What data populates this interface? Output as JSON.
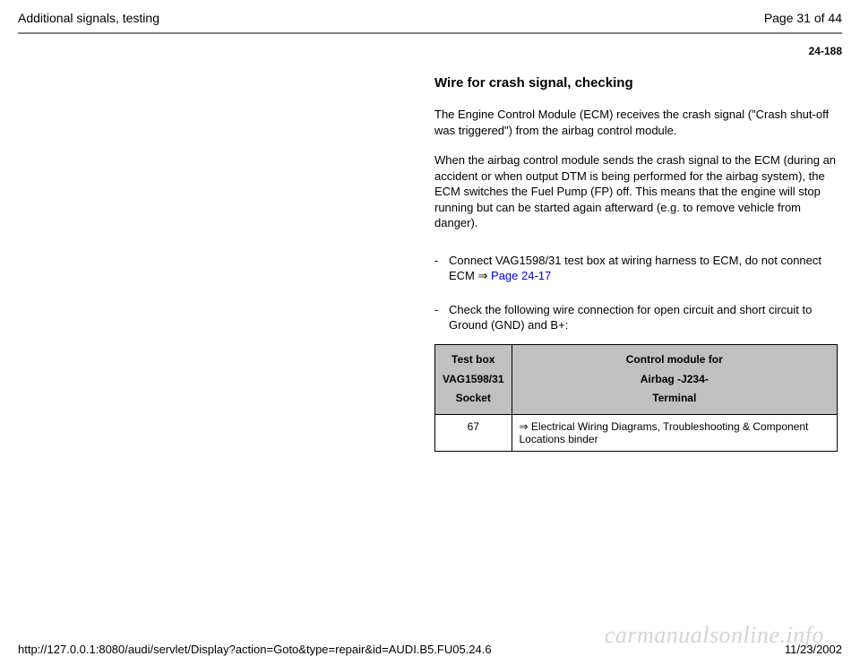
{
  "header": {
    "left": "Additional signals, testing",
    "right": "Page 31 of 44"
  },
  "page_section_number": "24-188",
  "section_title": "Wire for crash signal, checking",
  "paragraph1": "The Engine Control Module (ECM) receives the crash signal (\"Crash shut-off was triggered\") from the airbag control module.",
  "paragraph2": "When the airbag control module sends the crash signal to the ECM (during an accident or when output DTM is being performed for the airbag system), the ECM switches the Fuel Pump (FP) off. This means that the engine will stop running but can be started again afterward (e.g. to remove vehicle from danger).",
  "bullet1": {
    "marker": "-",
    "text_before_link": "Connect VAG1598/31 test box at wiring harness to ECM, do not connect ECM  ",
    "arrow": "⇒",
    "link_text": " Page 24-17"
  },
  "bullet2": {
    "marker": "-",
    "text": "Check the following wire connection for open circuit and short circuit to Ground (GND) and B+:"
  },
  "table": {
    "headers": {
      "col1_line1": "Test box",
      "col1_line2": "VAG1598/31",
      "col1_line3": "Socket",
      "col2_line1": "Control module for",
      "col2_line2": "Airbag -J234-",
      "col2_line3": "Terminal"
    },
    "row": {
      "socket": "67",
      "arrow": "⇒",
      "terminal": " Electrical Wiring Diagrams, Troubleshooting & Component Locations binder"
    }
  },
  "footer": {
    "left": "http://127.0.0.1:8080/audi/servlet/Display?action=Goto&type=repair&id=AUDI.B5.FU05.24.6",
    "right": "11/23/2002"
  },
  "watermark": "carmanualsonline.info"
}
